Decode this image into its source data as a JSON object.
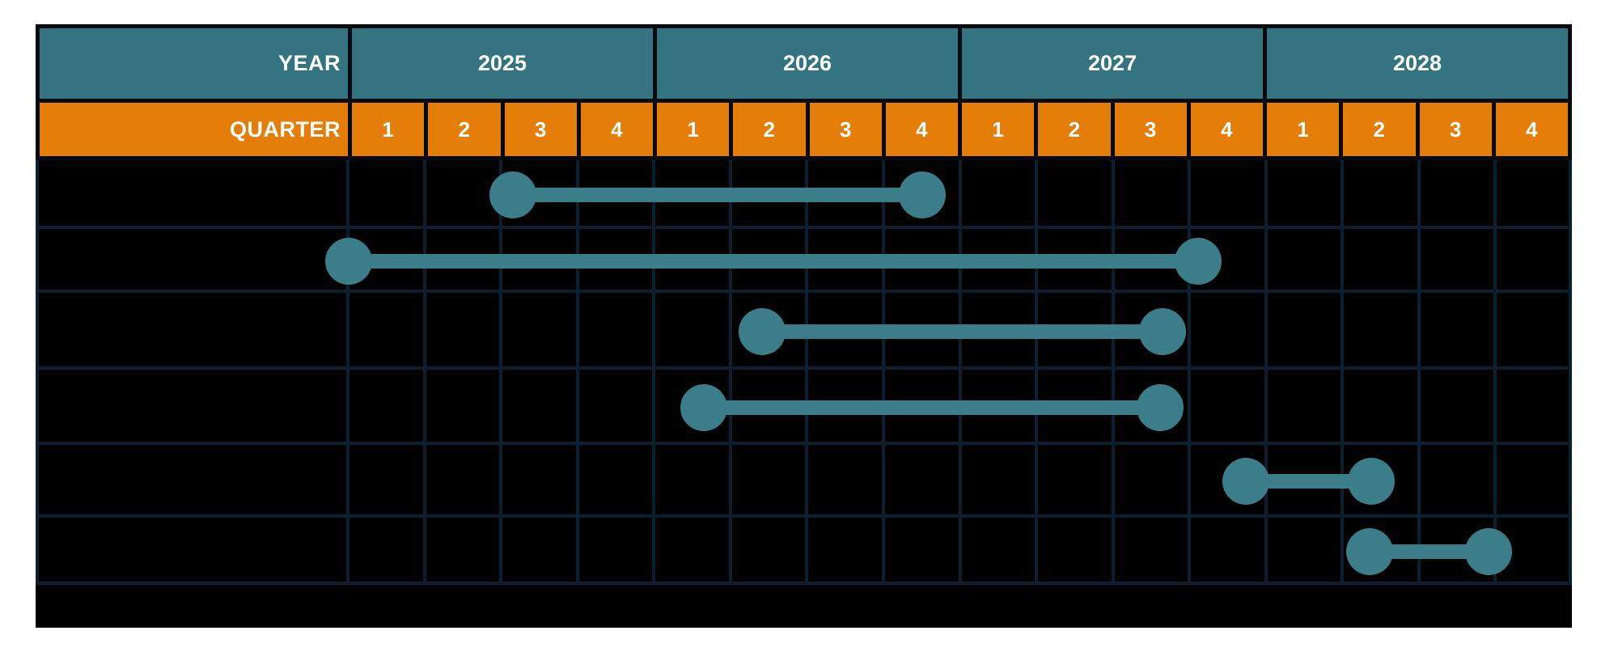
{
  "header": {
    "year_label": "YEAR",
    "quarter_label": "QUARTER",
    "years": [
      "2025",
      "2026",
      "2027",
      "2028"
    ],
    "quarters_per_year": [
      "1",
      "2",
      "3",
      "4"
    ]
  },
  "colors": {
    "year_header_bg": "#337480",
    "quarter_header_bg": "#e57e08",
    "bar_teal": "#3b7e8a",
    "grid_line": "#0c1f2e",
    "body_bg": "#000000",
    "cell_border": "#060b11",
    "header_text": "#ffffff",
    "page_bg": "#ffffff"
  },
  "chart_data": {
    "type": "gantt-timeline",
    "title": "",
    "time_axis": {
      "unit": "quarter",
      "start": "2025 Q1",
      "end": "2028 Q4",
      "total_quarters": 16,
      "years": [
        "2025",
        "2026",
        "2027",
        "2028"
      ],
      "quarter_ticks": [
        "1",
        "2",
        "3",
        "4"
      ]
    },
    "task_rows": 6,
    "empty_trailing_row": true,
    "row_labels_visible": false,
    "bars": [
      {
        "row": 1,
        "start_q": 2.16,
        "end_q": 7.51,
        "start_label": "2025 Q3 (start)",
        "end_label": "2026 Q4 (mid)"
      },
      {
        "row": 2,
        "start_q": 0.01,
        "end_q": 11.11,
        "start_label": "2025 Q1 (start)",
        "end_label": "2027 Q4 (start)"
      },
      {
        "row": 3,
        "start_q": 5.41,
        "end_q": 10.65,
        "start_label": "2026 Q2 (mid)",
        "end_label": "2027 Q3 (late)"
      },
      {
        "row": 4,
        "start_q": 4.65,
        "end_q": 10.62,
        "start_label": "2026 Q1 (late)",
        "end_label": "2027 Q3 (late)"
      },
      {
        "row": 5,
        "start_q": 11.74,
        "end_q": 13.38,
        "start_label": "2027 Q4 (late)",
        "end_label": "2028 Q2 (mid)"
      },
      {
        "row": 6,
        "start_q": 13.36,
        "end_q": 14.91,
        "start_label": "2028 Q2 (mid)",
        "end_label": "2028 Q3 (end)"
      }
    ],
    "legend": null,
    "grid": true
  }
}
